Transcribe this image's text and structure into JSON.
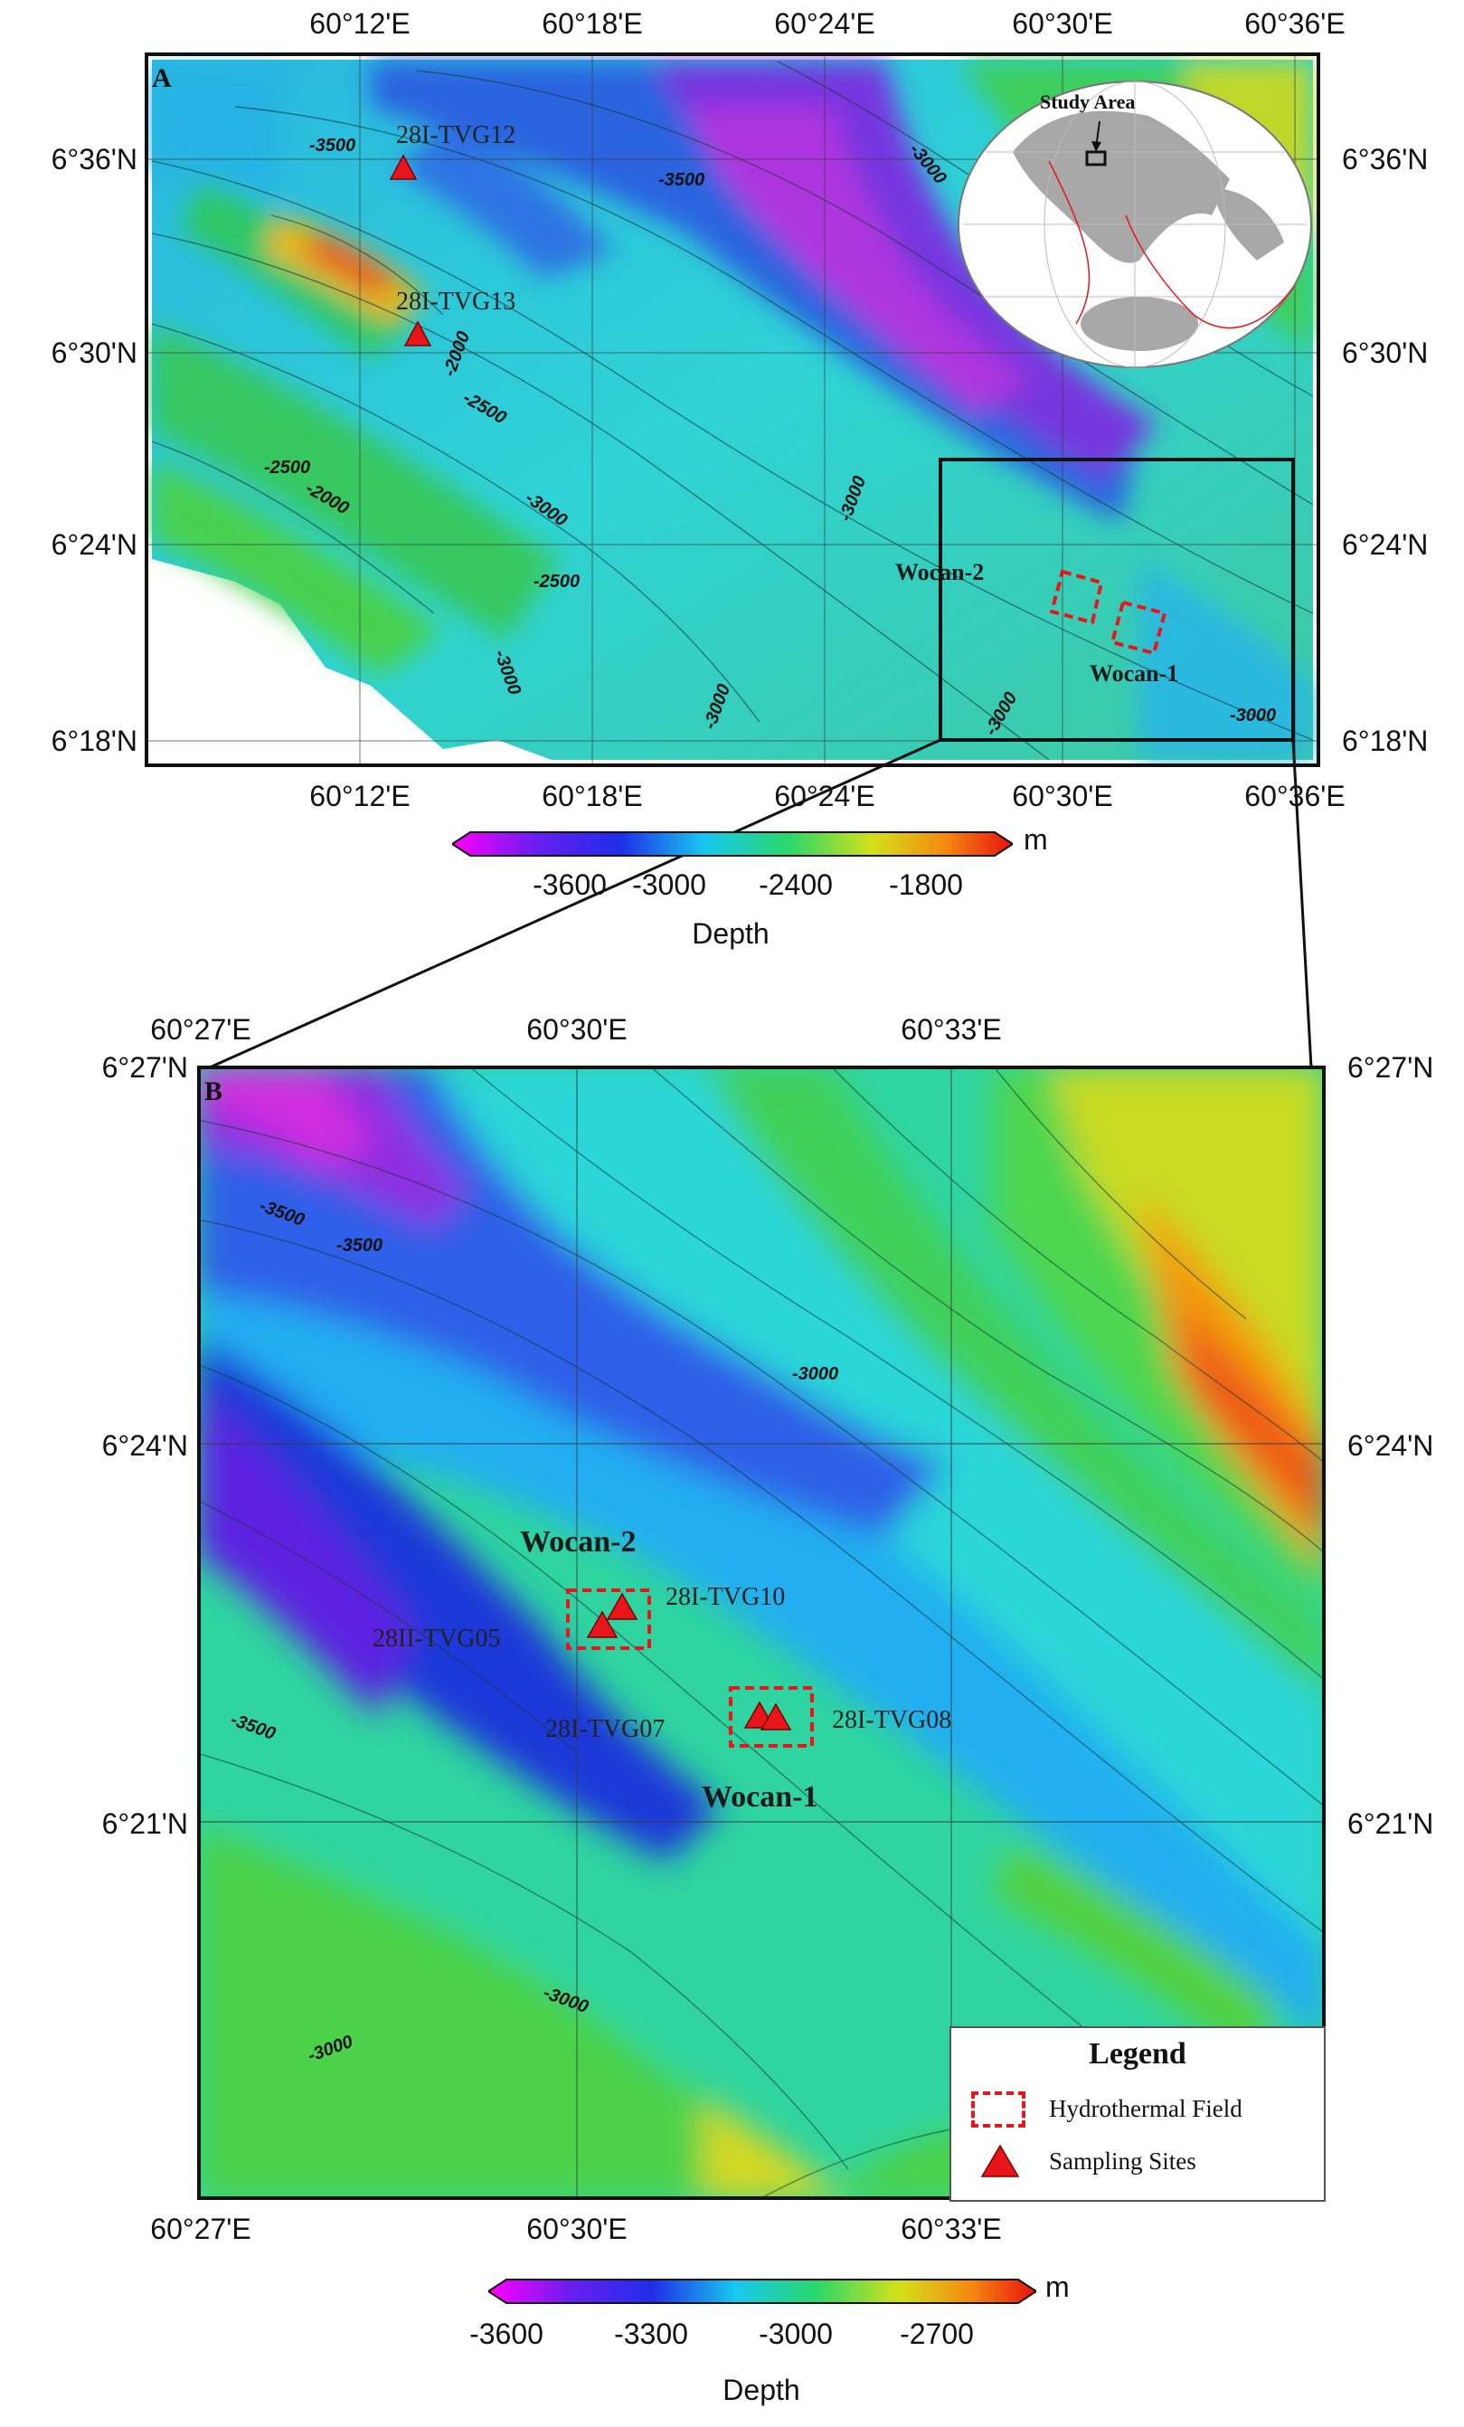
{
  "panel_a": {
    "letter": "A",
    "top_lon_labels": [
      "60°12'E",
      "60°18'E",
      "60°24'E",
      "60°30'E",
      "60°36'E"
    ],
    "bottom_lon_labels": [
      "60°12'E",
      "60°18'E",
      "60°24'E",
      "60°30'E",
      "60°36'E"
    ],
    "lat_labels": [
      "6°36'N",
      "6°30'N",
      "6°24'N",
      "6°18'N"
    ],
    "sites": [
      "28I-TVG12",
      "28I-TVG13"
    ],
    "fields": [
      "Wocan-2",
      "Wocan-1"
    ],
    "inset_label": "Study Area",
    "contour_labels": [
      "-3500",
      "-3500",
      "-3000",
      "-2000",
      "-2500",
      "-2500",
      "-2000",
      "-3000",
      "-2500",
      "-3000",
      "-3000",
      "-3000",
      "-3000",
      "-3000"
    ]
  },
  "colorbar_a": {
    "unit": "m",
    "ticks": [
      "-3600",
      "-3000",
      "-2400",
      "-1800"
    ],
    "title": "Depth"
  },
  "panel_b": {
    "letter": "B",
    "top_lon_labels": [
      "60°27'E",
      "60°30'E",
      "60°33'E"
    ],
    "bottom_lon_labels": [
      "60°27'E",
      "60°30'E",
      "60°33'E"
    ],
    "lat_labels": [
      "6°27'N",
      "6°24'N",
      "6°21'N"
    ],
    "sites": [
      "28I-TVG10",
      "28II-TVG05",
      "28I-TVG07",
      "28I-TVG08"
    ],
    "fields": [
      "Wocan-2",
      "Wocan-1"
    ],
    "contour_labels": [
      "-3500",
      "-3500",
      "-3000",
      "-3500",
      "-3000",
      "-3000"
    ]
  },
  "legend": {
    "title": "Legend",
    "items": [
      "Hydrothermal Field",
      "Sampling Sites"
    ]
  },
  "colorbar_b": {
    "unit": "m",
    "ticks": [
      "-3600",
      "-3300",
      "-3000",
      "-2700"
    ],
    "title": "Depth"
  },
  "colors": {
    "site_marker": "#e8161b",
    "field_outline": "#e8161b",
    "frame": "#000000"
  }
}
